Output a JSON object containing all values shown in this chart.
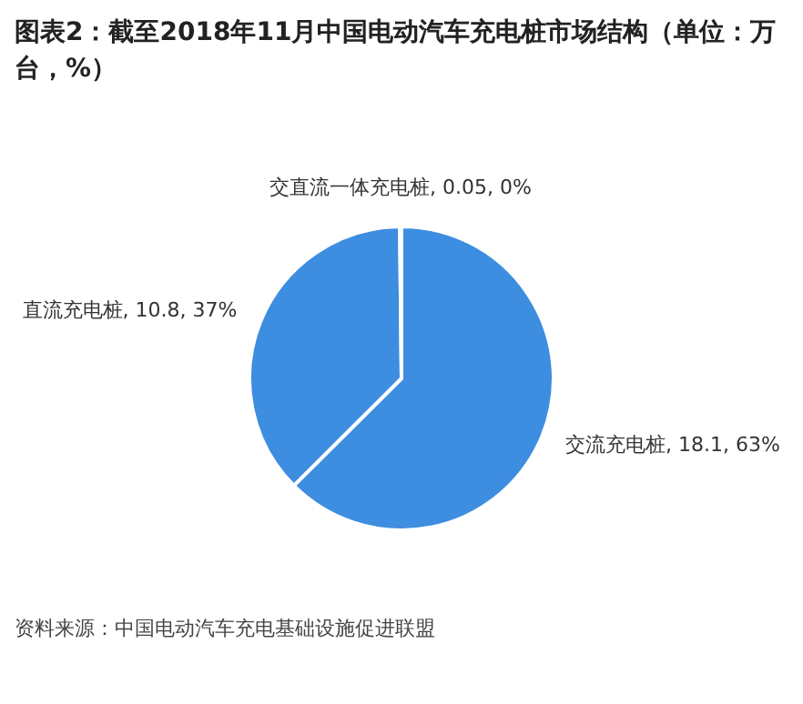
{
  "chart_data": {
    "type": "pie",
    "title": "图表2：截至2018年11月中国电动汽车充电桩市场结构（单位：万台，%）",
    "categories": [
      "交流充电桩",
      "直流充电桩",
      "交直流一体充电桩"
    ],
    "values": [
      18.1,
      10.8,
      0.05
    ],
    "value_labels": [
      "18.1, 63%",
      "10.8, 37%",
      "0.05, 0%"
    ],
    "colors": [
      "#3d8de0",
      "#3d8de0",
      "#3d8de0"
    ],
    "legend": false,
    "annotations": [
      "资料来源：中国电动汽车充电基础设施促进联盟"
    ]
  }
}
